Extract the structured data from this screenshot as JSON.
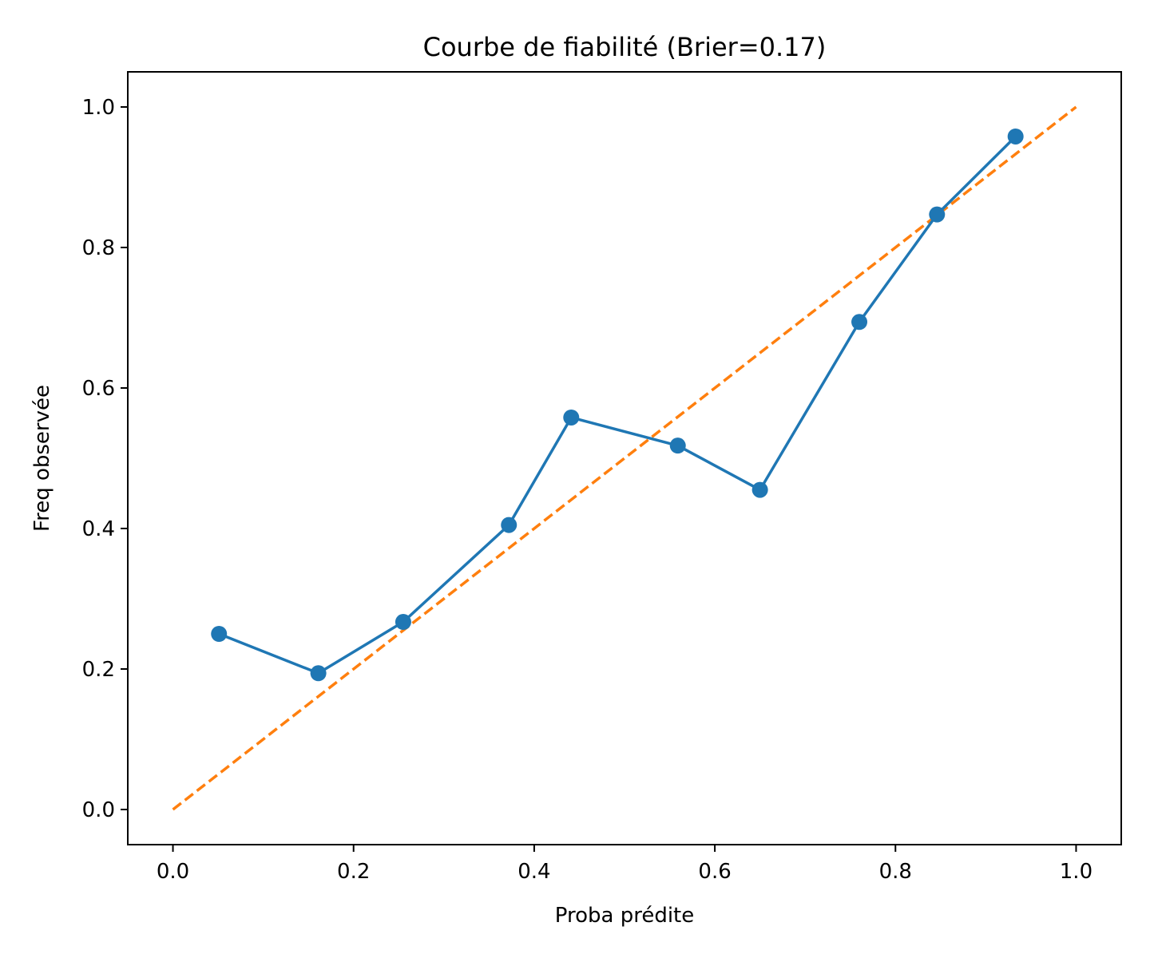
{
  "chart_data": {
    "type": "line",
    "title": "Courbe de fiabilité (Brier=0.17)",
    "xlabel": "Proba prédite",
    "ylabel": "Freq observée",
    "xlim": [
      -0.05,
      1.05
    ],
    "ylim": [
      -0.05,
      1.05
    ],
    "xticks": [
      0.0,
      0.2,
      0.4,
      0.6,
      0.8,
      1.0
    ],
    "yticks": [
      0.0,
      0.2,
      0.4,
      0.6,
      0.8,
      1.0
    ],
    "xtick_labels": [
      "0.0",
      "0.2",
      "0.4",
      "0.6",
      "0.8",
      "1.0"
    ],
    "ytick_labels": [
      "0.0",
      "0.2",
      "0.4",
      "0.6",
      "0.8",
      "1.0"
    ],
    "grid": false,
    "series": [
      {
        "style": "solid line with circle markers",
        "color": "#1f77b4",
        "x": [
          0.051,
          0.161,
          0.255,
          0.372,
          0.441,
          0.559,
          0.65,
          0.76,
          0.846,
          0.933
        ],
        "y": [
          0.25,
          0.194,
          0.267,
          0.405,
          0.558,
          0.518,
          0.455,
          0.694,
          0.847,
          0.958
        ]
      },
      {
        "style": "dashed line",
        "color": "#ff7f0e",
        "x": [
          0.0,
          1.0
        ],
        "y": [
          0.0,
          1.0
        ]
      }
    ]
  }
}
